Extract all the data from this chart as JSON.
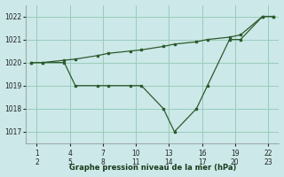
{
  "title": "Graphe pression niveau de la mer (hPa)",
  "bg_color": "#cce8e8",
  "line_color": "#2d5a2d",
  "grid_color": "#99ccbb",
  "ylim": [
    1016.5,
    1022.5
  ],
  "yticks": [
    1017,
    1018,
    1019,
    1020,
    1021,
    1022
  ],
  "line1_x": [
    1,
    2,
    4,
    5,
    7,
    8,
    10,
    11,
    13,
    14,
    16,
    17,
    19,
    20,
    22,
    23
  ],
  "line1_y": [
    1020.0,
    1020.0,
    1020.1,
    1020.15,
    1020.3,
    1020.4,
    1020.5,
    1020.55,
    1020.7,
    1020.8,
    1020.9,
    1021.0,
    1021.1,
    1021.2,
    1022.0,
    1022.0
  ],
  "line2_x": [
    1,
    2,
    4,
    5,
    7,
    8,
    10,
    11,
    13,
    14,
    16,
    17,
    19,
    20,
    22,
    23
  ],
  "line2_y": [
    1020.0,
    1020.0,
    1020.0,
    1019.0,
    1019.0,
    1019.0,
    1019.0,
    1019.0,
    1018.0,
    1017.0,
    1018.0,
    1019.0,
    1021.0,
    1021.0,
    1022.0,
    1022.0
  ],
  "xtick_pairs": [
    [
      "1",
      "2"
    ],
    [
      "4",
      "5"
    ],
    [
      "7",
      "8"
    ],
    [
      "10",
      "11"
    ],
    [
      "13",
      "14"
    ],
    [
      "16",
      "17"
    ],
    [
      "19",
      "20"
    ],
    [
      "22",
      "23"
    ]
  ],
  "xtick_positions": [
    1.5,
    4.5,
    7.5,
    10.5,
    13.5,
    16.5,
    19.5,
    22.5
  ]
}
